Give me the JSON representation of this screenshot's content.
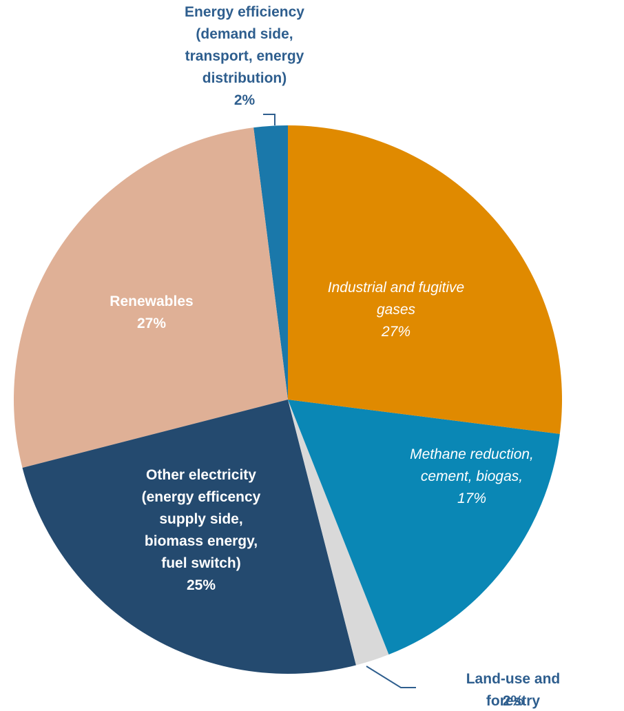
{
  "chart_data": {
    "type": "pie",
    "categories": [
      "Industrial and fugitive\ngases",
      "Methane reduction,\ncement, biogas,",
      "Land-use and forestry",
      "Other electricity\n(energy efficency\nsupply side,\nbiomass energy,\nfuel switch)",
      "Renewables",
      "Energy efficiency\n(demand side,\ntransport, energy\ndistribution)"
    ],
    "values": [
      27,
      17,
      2,
      25,
      27,
      2
    ],
    "value_labels": [
      "27%",
      "17%",
      "2%",
      "25%",
      "27%",
      "2%"
    ],
    "colors": [
      "#e08a00",
      "#0a87b5",
      "#d9d9d9",
      "#244a6f",
      "#dfb096",
      "#1a78aa"
    ]
  }
}
